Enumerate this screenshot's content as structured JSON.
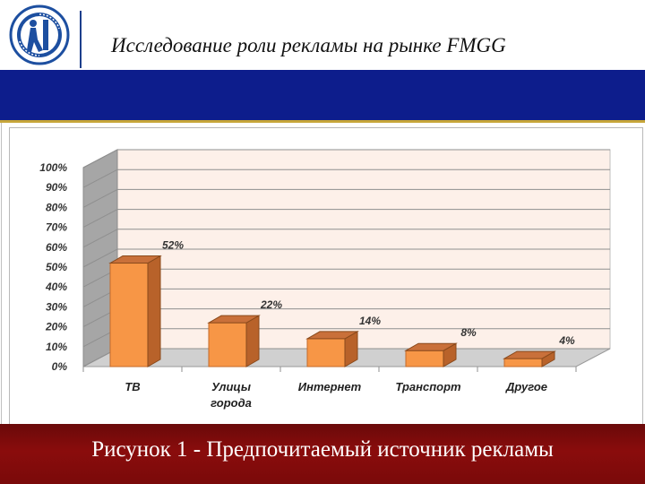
{
  "header": {
    "title": "Исследование роли рекламы на рынке FMGG",
    "logo_icon": "university-seal-icon"
  },
  "colors": {
    "blue_band": "#0d1d8c",
    "gold_line": "#c7a63a",
    "caption_band": "#8a0c0c",
    "bar_front": "#f79646",
    "bar_side": "#b8622a",
    "plot_wall": "#fdf0e9",
    "left_wall": "#a6a6a6"
  },
  "chart_data": {
    "type": "bar",
    "categories": [
      [
        "ТВ"
      ],
      [
        "Улицы",
        "города"
      ],
      [
        "Интернет"
      ],
      [
        "Транспорт"
      ],
      [
        "Другое"
      ]
    ],
    "values": [
      52,
      22,
      14,
      8,
      4
    ],
    "data_labels": [
      "52%",
      "22%",
      "14%",
      "8%",
      "4%"
    ],
    "y_ticks": [
      "100%",
      "90%",
      "80%",
      "70%",
      "60%",
      "50%",
      "40%",
      "30%",
      "20%",
      "10%",
      "0%"
    ],
    "ylim": [
      0,
      100
    ],
    "grid": true,
    "style": "3d"
  },
  "caption": "Рисунок 1 - Предпочитаемый источник рекламы"
}
